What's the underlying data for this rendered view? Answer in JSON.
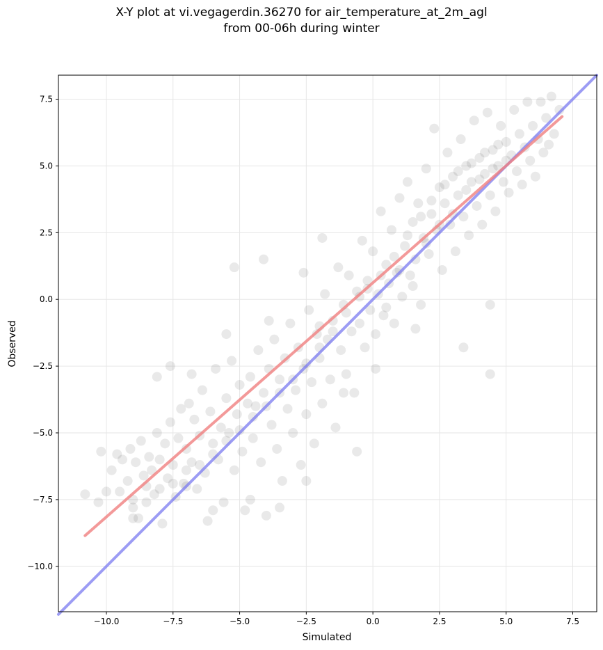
{
  "title_line1": "X-Y plot at vi.vegagerdin.36270 for air_temperature_at_2m_agl",
  "title_line2": "from 00-06h during winter",
  "chart_data": {
    "type": "scatter",
    "title": "X-Y plot at vi.vegagerdin.36270 for air_temperature_at_2m_agl from 00-06h during winter",
    "xlabel": "Simulated",
    "ylabel": "Observed",
    "xlim": [
      -11.8,
      8.4
    ],
    "ylim": [
      -11.7,
      8.4
    ],
    "xticks": [
      -10.0,
      -7.5,
      -5.0,
      -2.5,
      0.0,
      2.5,
      5.0,
      7.5
    ],
    "xtick_labels": [
      "−10.0",
      "−7.5",
      "−5.0",
      "−2.5",
      "0.0",
      "2.5",
      "5.0",
      "7.5"
    ],
    "yticks": [
      -10.0,
      -7.5,
      -5.0,
      -2.5,
      0.0,
      2.5,
      5.0,
      7.5
    ],
    "ytick_labels": [
      "−10.0",
      "−7.5",
      "−5.0",
      "−2.5",
      "0.0",
      "2.5",
      "5.0",
      "7.5"
    ],
    "grid": true,
    "point_color": "#555555",
    "point_opacity": 0.13,
    "regression_line": {
      "color": "#f08080",
      "x": [
        -10.8,
        7.1
      ],
      "y": [
        -8.85,
        6.85
      ]
    },
    "identity_line": {
      "color": "#7b7bf0",
      "x": [
        -11.8,
        8.4
      ],
      "y": [
        -11.8,
        8.4
      ]
    },
    "points": [
      [
        -10.8,
        -7.3
      ],
      [
        -10.3,
        -7.6
      ],
      [
        -10.2,
        -5.7
      ],
      [
        -10.0,
        -7.2
      ],
      [
        -9.8,
        -6.4
      ],
      [
        -9.6,
        -5.8
      ],
      [
        -9.5,
        -7.2
      ],
      [
        -9.4,
        -6.0
      ],
      [
        -9.2,
        -6.8
      ],
      [
        -9.1,
        -5.6
      ],
      [
        -9.0,
        -7.5
      ],
      [
        -8.9,
        -6.1
      ],
      [
        -8.8,
        -8.2
      ],
      [
        -8.7,
        -5.3
      ],
      [
        -8.6,
        -6.6
      ],
      [
        -8.5,
        -7.0
      ],
      [
        -8.4,
        -5.9
      ],
      [
        -8.3,
        -6.4
      ],
      [
        -8.2,
        -7.3
      ],
      [
        -8.1,
        -5.0
      ],
      [
        -8.0,
        -6.0
      ],
      [
        -7.9,
        -8.4
      ],
      [
        -7.8,
        -5.4
      ],
      [
        -7.7,
        -6.7
      ],
      [
        -7.6,
        -4.6
      ],
      [
        -7.5,
        -6.2
      ],
      [
        -7.4,
        -7.4
      ],
      [
        -7.3,
        -5.2
      ],
      [
        -7.2,
        -4.1
      ],
      [
        -7.1,
        -6.9
      ],
      [
        -7.0,
        -5.6
      ],
      [
        -6.9,
        -3.9
      ],
      [
        -6.8,
        -6.1
      ],
      [
        -6.7,
        -4.5
      ],
      [
        -6.6,
        -7.1
      ],
      [
        -6.5,
        -5.1
      ],
      [
        -6.4,
        -3.4
      ],
      [
        -6.3,
        -6.5
      ],
      [
        -6.2,
        -8.3
      ],
      [
        -6.1,
        -4.2
      ],
      [
        -6.0,
        -5.4
      ],
      [
        -5.9,
        -2.6
      ],
      [
        -5.8,
        -6.0
      ],
      [
        -5.7,
        -4.8
      ],
      [
        -5.6,
        -7.6
      ],
      [
        -5.5,
        -3.7
      ],
      [
        -5.4,
        -5.0
      ],
      [
        -5.3,
        -2.3
      ],
      [
        -5.2,
        -6.4
      ],
      [
        -5.1,
        -4.3
      ],
      [
        -5.0,
        -3.2
      ],
      [
        -4.9,
        -5.7
      ],
      [
        -4.8,
        -7.9
      ],
      [
        -4.7,
        -3.9
      ],
      [
        -4.6,
        -2.9
      ],
      [
        -4.5,
        -5.2
      ],
      [
        -4.4,
        -4.0
      ],
      [
        -4.3,
        -1.9
      ],
      [
        -4.2,
        -6.1
      ],
      [
        -4.1,
        -3.5
      ],
      [
        -4.0,
        -8.1
      ],
      [
        -3.9,
        -2.6
      ],
      [
        -3.8,
        -4.7
      ],
      [
        -3.7,
        -1.5
      ],
      [
        -3.6,
        -5.6
      ],
      [
        -3.5,
        -3.0
      ],
      [
        -3.4,
        -6.8
      ],
      [
        -3.3,
        -2.2
      ],
      [
        -3.2,
        -4.1
      ],
      [
        -3.1,
        -0.9
      ],
      [
        -3.0,
        -5.0
      ],
      [
        -2.9,
        -3.4
      ],
      [
        -2.8,
        -1.8
      ],
      [
        -2.7,
        -6.2
      ],
      [
        -2.6,
        -2.6
      ],
      [
        -2.5,
        -4.3
      ],
      [
        -2.4,
        -0.4
      ],
      [
        -2.3,
        -3.1
      ],
      [
        -2.2,
        -5.4
      ],
      [
        -2.1,
        -1.3
      ],
      [
        -2.0,
        -2.2
      ],
      [
        -1.9,
        -3.9
      ],
      [
        -1.8,
        0.2
      ],
      [
        -1.7,
        -1.5
      ],
      [
        -1.6,
        -3.0
      ],
      [
        -1.5,
        -0.8
      ],
      [
        -1.4,
        -4.8
      ],
      [
        -1.3,
        1.2
      ],
      [
        -1.2,
        -1.9
      ],
      [
        -1.1,
        -0.2
      ],
      [
        -1.0,
        -2.8
      ],
      [
        -0.9,
        0.9
      ],
      [
        -0.8,
        -1.2
      ],
      [
        -0.7,
        -3.5
      ],
      [
        -0.6,
        0.3
      ],
      [
        -0.5,
        -0.9
      ],
      [
        -0.4,
        2.2
      ],
      [
        -0.3,
        -1.8
      ],
      [
        -0.2,
        0.7
      ],
      [
        -0.1,
        -0.4
      ],
      [
        0.0,
        1.8
      ],
      [
        0.1,
        -1.3
      ],
      [
        0.2,
        0.2
      ],
      [
        0.3,
        3.3
      ],
      [
        0.4,
        -0.6
      ],
      [
        0.5,
        1.3
      ],
      [
        0.6,
        0.6
      ],
      [
        0.7,
        2.6
      ],
      [
        0.8,
        -0.9
      ],
      [
        0.9,
        1.0
      ],
      [
        1.0,
        3.8
      ],
      [
        1.1,
        0.1
      ],
      [
        1.2,
        2.0
      ],
      [
        1.3,
        4.4
      ],
      [
        1.4,
        0.9
      ],
      [
        1.5,
        2.9
      ],
      [
        1.6,
        1.5
      ],
      [
        1.7,
        3.6
      ],
      [
        1.8,
        -0.2
      ],
      [
        1.9,
        2.3
      ],
      [
        2.0,
        4.9
      ],
      [
        2.1,
        1.7
      ],
      [
        2.2,
        3.2
      ],
      [
        2.3,
        6.4
      ],
      [
        2.4,
        2.6
      ],
      [
        2.5,
        4.2
      ],
      [
        2.6,
        1.1
      ],
      [
        2.7,
        3.6
      ],
      [
        2.8,
        5.5
      ],
      [
        2.9,
        2.8
      ],
      [
        3.0,
        4.6
      ],
      [
        3.1,
        1.8
      ],
      [
        3.2,
        3.9
      ],
      [
        3.3,
        6.0
      ],
      [
        3.4,
        3.1
      ],
      [
        3.5,
        5.0
      ],
      [
        3.6,
        2.4
      ],
      [
        3.7,
        4.4
      ],
      [
        3.8,
        6.7
      ],
      [
        3.9,
        3.5
      ],
      [
        4.0,
        5.3
      ],
      [
        4.1,
        2.8
      ],
      [
        4.2,
        4.7
      ],
      [
        4.3,
        7.0
      ],
      [
        4.4,
        3.9
      ],
      [
        4.5,
        5.6
      ],
      [
        4.6,
        3.3
      ],
      [
        4.7,
        5.0
      ],
      [
        4.8,
        6.5
      ],
      [
        4.9,
        4.4
      ],
      [
        5.0,
        5.9
      ],
      [
        5.1,
        4.0
      ],
      [
        5.2,
        5.4
      ],
      [
        5.3,
        7.1
      ],
      [
        5.4,
        4.8
      ],
      [
        5.5,
        6.2
      ],
      [
        5.6,
        4.3
      ],
      [
        5.7,
        5.7
      ],
      [
        5.8,
        7.4
      ],
      [
        5.9,
        5.2
      ],
      [
        6.0,
        6.5
      ],
      [
        6.1,
        4.6
      ],
      [
        6.2,
        6.0
      ],
      [
        6.3,
        7.4
      ],
      [
        6.4,
        5.5
      ],
      [
        6.5,
        6.8
      ],
      [
        6.6,
        5.8
      ],
      [
        6.7,
        7.6
      ],
      [
        6.8,
        6.2
      ],
      [
        7.0,
        7.1
      ],
      [
        4.4,
        -0.2
      ],
      [
        4.4,
        -2.8
      ],
      [
        3.4,
        -1.8
      ],
      [
        1.6,
        -1.1
      ],
      [
        0.1,
        -2.6
      ],
      [
        -0.6,
        -5.7
      ],
      [
        -1.9,
        2.3
      ],
      [
        -2.6,
        1.0
      ],
      [
        -4.1,
        1.5
      ],
      [
        -5.2,
        1.2
      ],
      [
        -7.6,
        -2.5
      ],
      [
        -8.1,
        -2.9
      ],
      [
        -9.0,
        -8.2
      ],
      [
        -2.5,
        -6.8
      ],
      [
        -3.5,
        -7.8
      ],
      [
        -4.6,
        -7.5
      ],
      [
        -6.0,
        -7.9
      ],
      [
        -7.0,
        -7.0
      ],
      [
        -5.5,
        -1.3
      ],
      [
        -6.8,
        -2.8
      ],
      [
        -3.9,
        -0.8
      ],
      [
        -2.0,
        -1.0
      ],
      [
        -1.1,
        -3.5
      ],
      [
        0.5,
        -0.3
      ],
      [
        1.0,
        1.1
      ],
      [
        1.5,
        0.5
      ],
      [
        2.0,
        2.1
      ],
      [
        2.5,
        2.8
      ],
      [
        3.0,
        3.2
      ],
      [
        3.5,
        4.1
      ],
      [
        4.0,
        4.5
      ],
      [
        4.5,
        4.9
      ],
      [
        5.0,
        5.2
      ],
      [
        -0.2,
        0.4
      ],
      [
        0.3,
        0.9
      ],
      [
        0.8,
        1.6
      ],
      [
        1.3,
        2.4
      ],
      [
        1.8,
        3.1
      ],
      [
        2.2,
        3.7
      ],
      [
        2.7,
        4.3
      ],
      [
        3.2,
        4.8
      ],
      [
        3.7,
        5.1
      ],
      [
        4.2,
        5.5
      ],
      [
        4.7,
        5.8
      ],
      [
        -0.5,
        0.1
      ],
      [
        -1.0,
        -0.5
      ],
      [
        -1.5,
        -1.2
      ],
      [
        -2.0,
        -1.8
      ],
      [
        -2.5,
        -2.4
      ],
      [
        -3.0,
        -3.0
      ],
      [
        -3.5,
        -3.5
      ],
      [
        -4.0,
        -4.0
      ],
      [
        -4.5,
        -4.4
      ],
      [
        -5.0,
        -4.9
      ],
      [
        -5.5,
        -5.3
      ],
      [
        -6.0,
        -5.8
      ],
      [
        -6.5,
        -6.2
      ],
      [
        -7.0,
        -6.4
      ],
      [
        -7.5,
        -6.9
      ],
      [
        -8.0,
        -7.1
      ],
      [
        -8.5,
        -7.6
      ],
      [
        -9.0,
        -7.8
      ]
    ]
  }
}
